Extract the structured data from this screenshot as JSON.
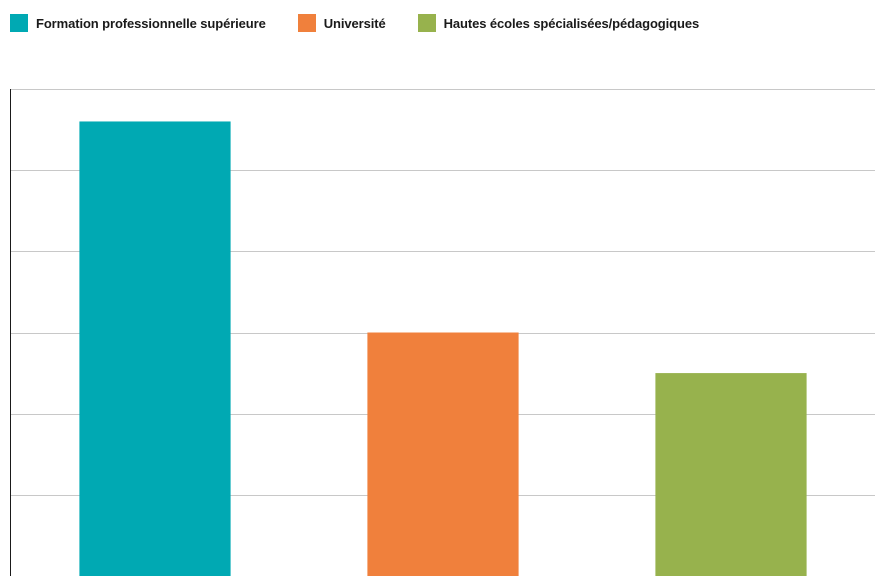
{
  "legend": {
    "position": "top-left",
    "items": [
      {
        "label": "Formation professionnelle supérieure",
        "color": "#00a9b3"
      },
      {
        "label": "Université",
        "color": "#f0803c"
      },
      {
        "label": "Hautes écoles spécialisées/pédagogiques",
        "color": "#97b24d"
      }
    ]
  },
  "chart_data": {
    "type": "bar",
    "categories": [
      "Formation professionnelle supérieure",
      "Université",
      "Hautes écoles spécialisées/pédagogiques"
    ],
    "values": [
      5.6,
      3.0,
      2.5
    ],
    "colors": [
      "#00a9b3",
      "#f0803c",
      "#97b24d"
    ],
    "title": "",
    "xlabel": "",
    "ylabel": "",
    "ylim": [
      0,
      6
    ],
    "grid": true,
    "tick_labels_visible": false
  }
}
